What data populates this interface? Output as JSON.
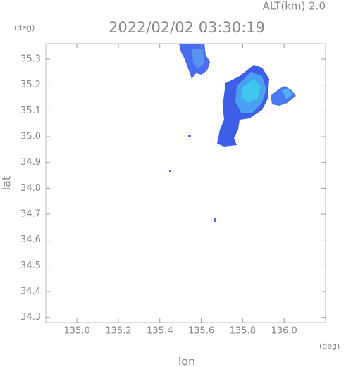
{
  "chart_data": {
    "type": "map",
    "title": "2022/02/02 03:30:19",
    "subtitle": "ALT(km) 2.0",
    "x_label": "lon",
    "y_label": "lat",
    "x_unit": "(deg)",
    "y_unit": "(deg)",
    "xlim": [
      134.85,
      136.2
    ],
    "ylim": [
      34.28,
      35.36
    ],
    "xticks": [
      {
        "value": 135.0,
        "label": "135.0"
      },
      135.2,
      135.4,
      135.6,
      135.8,
      {
        "value": 136.0,
        "label": "136.0"
      }
    ],
    "yticks": [
      34.3,
      34.4,
      34.5,
      34.6,
      34.7,
      34.8,
      34.9,
      {
        "value": 35.0,
        "label": "35.0"
      },
      35.1,
      35.2,
      35.3
    ]
  }
}
